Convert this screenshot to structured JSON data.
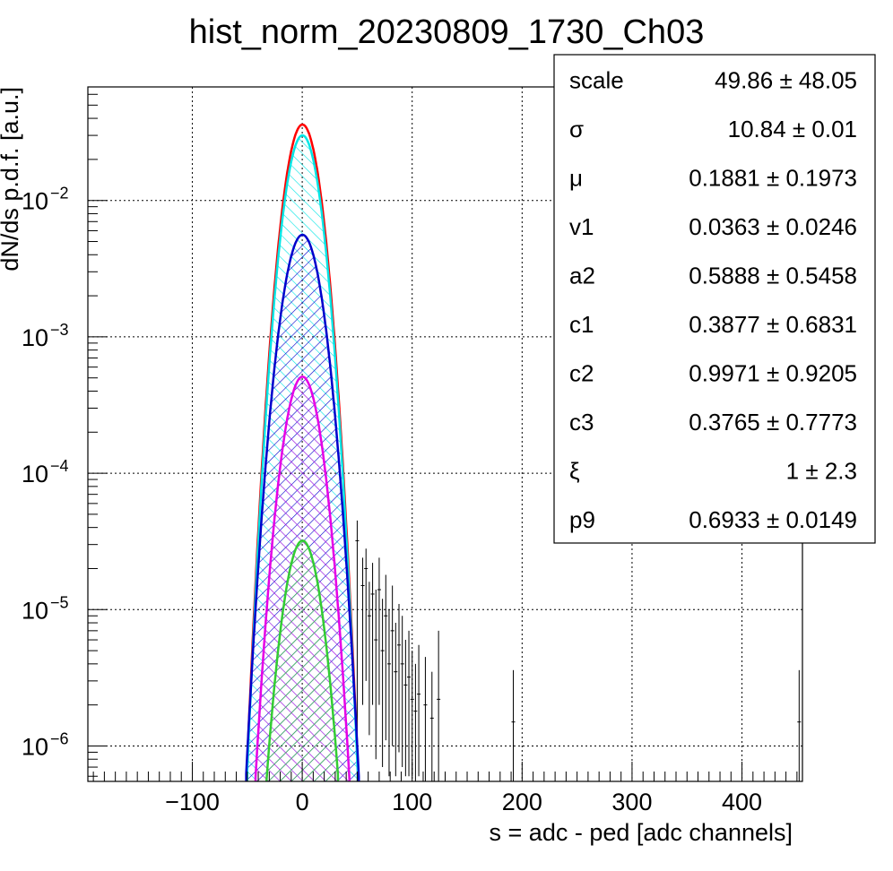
{
  "chart_data": {
    "type": "line",
    "title": "hist_norm_20230809_1730_Ch03",
    "xlabel": "s = adc - ped [adc channels]",
    "ylabel": "dN/ds p.d.f. [a.u.]",
    "xlim": [
      -195,
      455
    ],
    "ylim": [
      5.5e-07,
      0.068
    ],
    "yscale": "log",
    "grid": true,
    "x_ticks": [
      {
        "value": -100,
        "label": "−100"
      },
      {
        "value": 0,
        "label": "0"
      },
      {
        "value": 100,
        "label": "100"
      },
      {
        "value": 200,
        "label": "200"
      },
      {
        "value": 300,
        "label": "300"
      },
      {
        "value": 400,
        "label": "400"
      }
    ],
    "y_ticks": [
      {
        "value": 1e-06,
        "base": "10",
        "exp": "−6"
      },
      {
        "value": 1e-05,
        "base": "10",
        "exp": "−5"
      },
      {
        "value": 0.0001,
        "base": "10",
        "exp": "−4"
      },
      {
        "value": 0.001,
        "base": "10",
        "exp": "−3"
      },
      {
        "value": 0.01,
        "base": "10",
        "exp": "−2"
      }
    ],
    "series": [
      {
        "color": "#ff0000",
        "peak": 0.036,
        "mu": 0.1881,
        "sigma": 10.84,
        "fill": "none",
        "width": 2.5
      },
      {
        "color": "#00e5e5",
        "peak": 0.03,
        "mu": 0.1881,
        "sigma": 10.84,
        "fill": "hatch",
        "width": 2.5
      },
      {
        "color": "#0000cc",
        "peak": 0.0056,
        "mu": 0.1881,
        "sigma": 12.0,
        "fill": "hatch",
        "width": 2.5
      },
      {
        "color": "#e600e6",
        "peak": 0.00051,
        "mu": 0.1881,
        "sigma": 11.6,
        "fill": "hatch",
        "width": 2.5
      },
      {
        "color": "#33cc33",
        "peak": 3.2e-05,
        "mu": 0.1881,
        "sigma": 11.5,
        "fill": "hatch",
        "width": 2.5
      }
    ],
    "tail_points": [
      {
        "x": 50,
        "y": 3.2e-05,
        "lo": 1e-06,
        "hi": 4.5e-05
      },
      {
        "x": 55,
        "y": 1.5e-05,
        "lo": 2e-06,
        "hi": 2.4e-05
      },
      {
        "x": 58,
        "y": 2e-05,
        "lo": 3e-06,
        "hi": 2.8e-05
      },
      {
        "x": 61,
        "y": 9e-06,
        "lo": 1.2e-06,
        "hi": 1.6e-05
      },
      {
        "x": 64,
        "y": 1.3e-05,
        "lo": 2e-06,
        "hi": 2.2e-05
      },
      {
        "x": 67,
        "y": 6e-06,
        "lo": 8e-07,
        "hi": 1.4e-05
      },
      {
        "x": 70,
        "y": 1.4e-05,
        "lo": 2e-06,
        "hi": 2.4e-05
      },
      {
        "x": 73,
        "y": 5e-06,
        "lo": 7e-07,
        "hi": 1.2e-05
      },
      {
        "x": 76,
        "y": 9e-06,
        "lo": 1.1e-06,
        "hi": 1.8e-05
      },
      {
        "x": 79,
        "y": 4e-06,
        "lo": 6e-07,
        "hi": 1e-05
      },
      {
        "x": 82,
        "y": 7e-06,
        "lo": 1e-06,
        "hi": 1.5e-05
      },
      {
        "x": 85,
        "y": 3.5e-06,
        "lo": 6e-07,
        "hi": 8e-06
      },
      {
        "x": 88,
        "y": 5.5e-06,
        "lo": 9e-07,
        "hi": 1.1e-05
      },
      {
        "x": 91,
        "y": 4e-06,
        "lo": 7e-07,
        "hi": 9e-06
      },
      {
        "x": 94,
        "y": 2.8e-06,
        "lo": 6e-07,
        "hi": 6e-06
      },
      {
        "x": 97,
        "y": 3.2e-06,
        "lo": 6e-07,
        "hi": 7e-06
      },
      {
        "x": 100,
        "y": 2.2e-06,
        "lo": 6e-07,
        "hi": 5e-06
      },
      {
        "x": 103,
        "y": 1.8e-06,
        "lo": 5.5e-07,
        "hi": 4e-06
      },
      {
        "x": 106,
        "y": 2.4e-06,
        "lo": 6e-07,
        "hi": 5.5e-06
      },
      {
        "x": 112,
        "y": 2e-06,
        "lo": 5.5e-07,
        "hi": 4.5e-06
      },
      {
        "x": 118,
        "y": 1.6e-06,
        "lo": 5.5e-07,
        "hi": 3.5e-06
      },
      {
        "x": 124,
        "y": 2.2e-06,
        "lo": 5.5e-07,
        "hi": 7e-06
      },
      {
        "x": 192,
        "y": 1.5e-06,
        "lo": 5.5e-07,
        "hi": 3.6e-06
      },
      {
        "x": 452,
        "y": 1.5e-06,
        "lo": 5.5e-07,
        "hi": 3.6e-06
      }
    ],
    "stats": {
      "rows": [
        {
          "name": "scale",
          "value": "49.86 ± 48.05"
        },
        {
          "name": "σ",
          "value": "10.84 ± 0.01"
        },
        {
          "name": "μ",
          "value": "0.1881 ± 0.1973"
        },
        {
          "name": "v1",
          "value": "0.0363 ± 0.0246"
        },
        {
          "name": "a2",
          "value": "0.5888 ± 0.5458"
        },
        {
          "name": "c1",
          "value": "0.3877 ± 0.6831"
        },
        {
          "name": "c2",
          "value": "0.9971 ± 0.9205"
        },
        {
          "name": "c3",
          "value": "0.3765 ± 0.7773"
        },
        {
          "name": "ξ",
          "value": "1 ± 2.3"
        },
        {
          "name": "p9",
          "value": "0.6933 ± 0.0149"
        }
      ]
    }
  }
}
